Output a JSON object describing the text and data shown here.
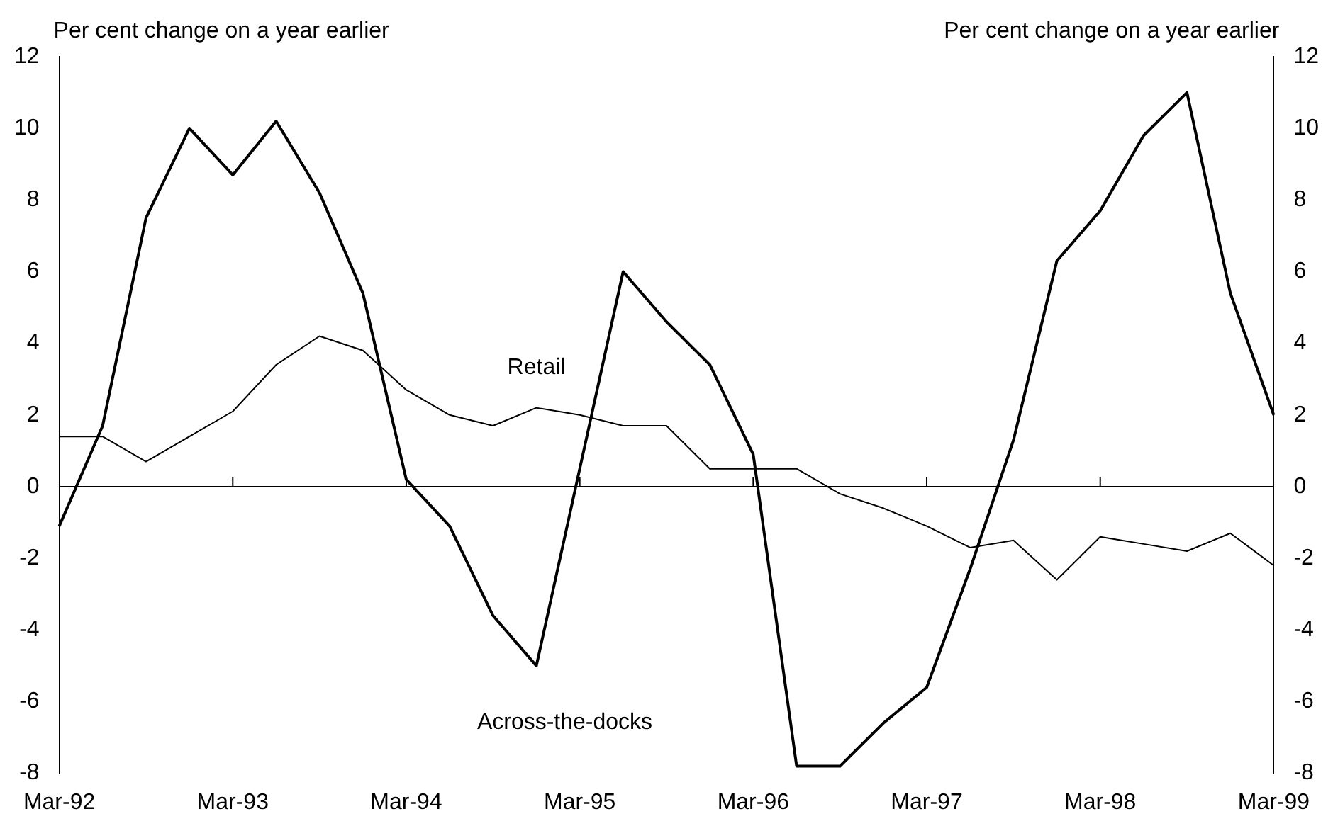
{
  "chart_data": {
    "type": "line",
    "ylabel": "Per cent change on a year earlier",
    "y2label": "Per cent change on a year earlier",
    "categories": [
      "Mar-92",
      null,
      null,
      null,
      "Mar-93",
      null,
      null,
      null,
      "Mar-94",
      null,
      null,
      null,
      "Mar-95",
      null,
      null,
      null,
      "Mar-96",
      null,
      null,
      null,
      "Mar-97",
      null,
      null,
      null,
      "Mar-98",
      null,
      null,
      null,
      "Mar-99"
    ],
    "series": [
      {
        "name": "Retail",
        "color": "#000000",
        "values": [
          1.4,
          1.4,
          0.7,
          1.4,
          2.1,
          3.4,
          4.2,
          3.8,
          2.7,
          2.0,
          1.7,
          2.2,
          2.0,
          1.7,
          1.7,
          0.5,
          0.5,
          0.5,
          -0.2,
          -0.6,
          -1.1,
          -1.7,
          -1.5,
          -2.6,
          -1.4,
          -1.6,
          -1.8,
          -1.3,
          -2.2
        ]
      },
      {
        "name": "Across-the-docks",
        "color": "#000000",
        "values": [
          -1.1,
          1.7,
          7.5,
          10.0,
          8.7,
          10.2,
          8.2,
          5.4,
          0.2,
          -1.1,
          -3.6,
          -5.0,
          0.5,
          6.0,
          4.6,
          3.4,
          0.9,
          -7.8,
          -7.8,
          -6.6,
          -5.6,
          -2.3,
          1.3,
          6.3,
          7.7,
          9.8,
          11.0,
          5.4,
          2.0
        ]
      }
    ],
    "ylim": [
      -8,
      12
    ],
    "yticks": [
      -8,
      -6,
      -4,
      -2,
      0,
      2,
      4,
      6,
      8,
      10,
      12
    ],
    "y2lim": [
      -8,
      12
    ],
    "y2ticks": [
      -8,
      -6,
      -4,
      -2,
      0,
      2,
      4,
      6,
      8,
      10,
      12
    ],
    "ref_lines": [
      {
        "axis": "y",
        "value": 0,
        "color": "#000000"
      }
    ],
    "grid": false,
    "legend": false,
    "marker": "none",
    "line_style": "solid"
  }
}
